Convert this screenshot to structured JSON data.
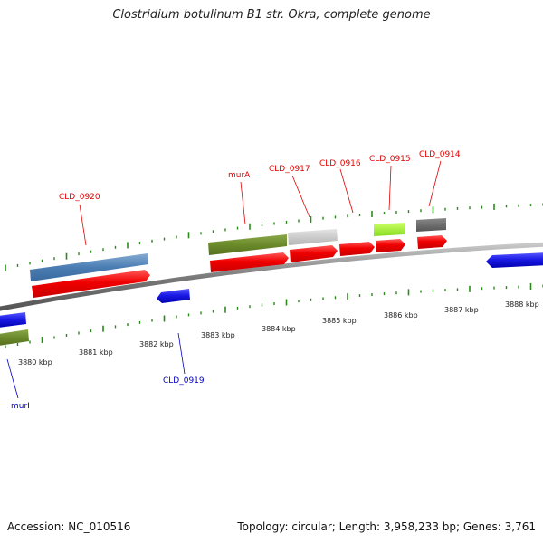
{
  "title": "Clostridium botulinum B1 str. Okra, complete genome",
  "footer": {
    "accession": "Accession: NC_010516",
    "topology": "Topology: circular; Length: 3,958,233 bp; Genes: 3,761"
  },
  "gene_labels": [
    {
      "text": "CLD_0920",
      "color": "#e00000"
    },
    {
      "text": "murA",
      "color": "#e00000"
    },
    {
      "text": "CLD_0917",
      "color": "#e00000"
    },
    {
      "text": "CLD_0916",
      "color": "#e00000"
    },
    {
      "text": "CLD_0915",
      "color": "#e00000"
    },
    {
      "text": "CLD_0914",
      "color": "#e00000"
    },
    {
      "text": "CLD_0919",
      "color": "#0000c8"
    },
    {
      "text": "murI",
      "color": "#0000c8"
    }
  ],
  "kbp_labels": [
    "3880 kbp",
    "3881 kbp",
    "3882 kbp",
    "3883 kbp",
    "3884 kbp",
    "3885 kbp",
    "3886 kbp",
    "3887 kbp",
    "3888 kbp"
  ],
  "colors": {
    "backbone": "#7a7a7a",
    "forward_cds": "#f00000",
    "reverse_cds": "#1a1ae6",
    "tick": "#2a8a1a",
    "label_forward": "#e00000",
    "label_reverse": "#0000c8"
  }
}
